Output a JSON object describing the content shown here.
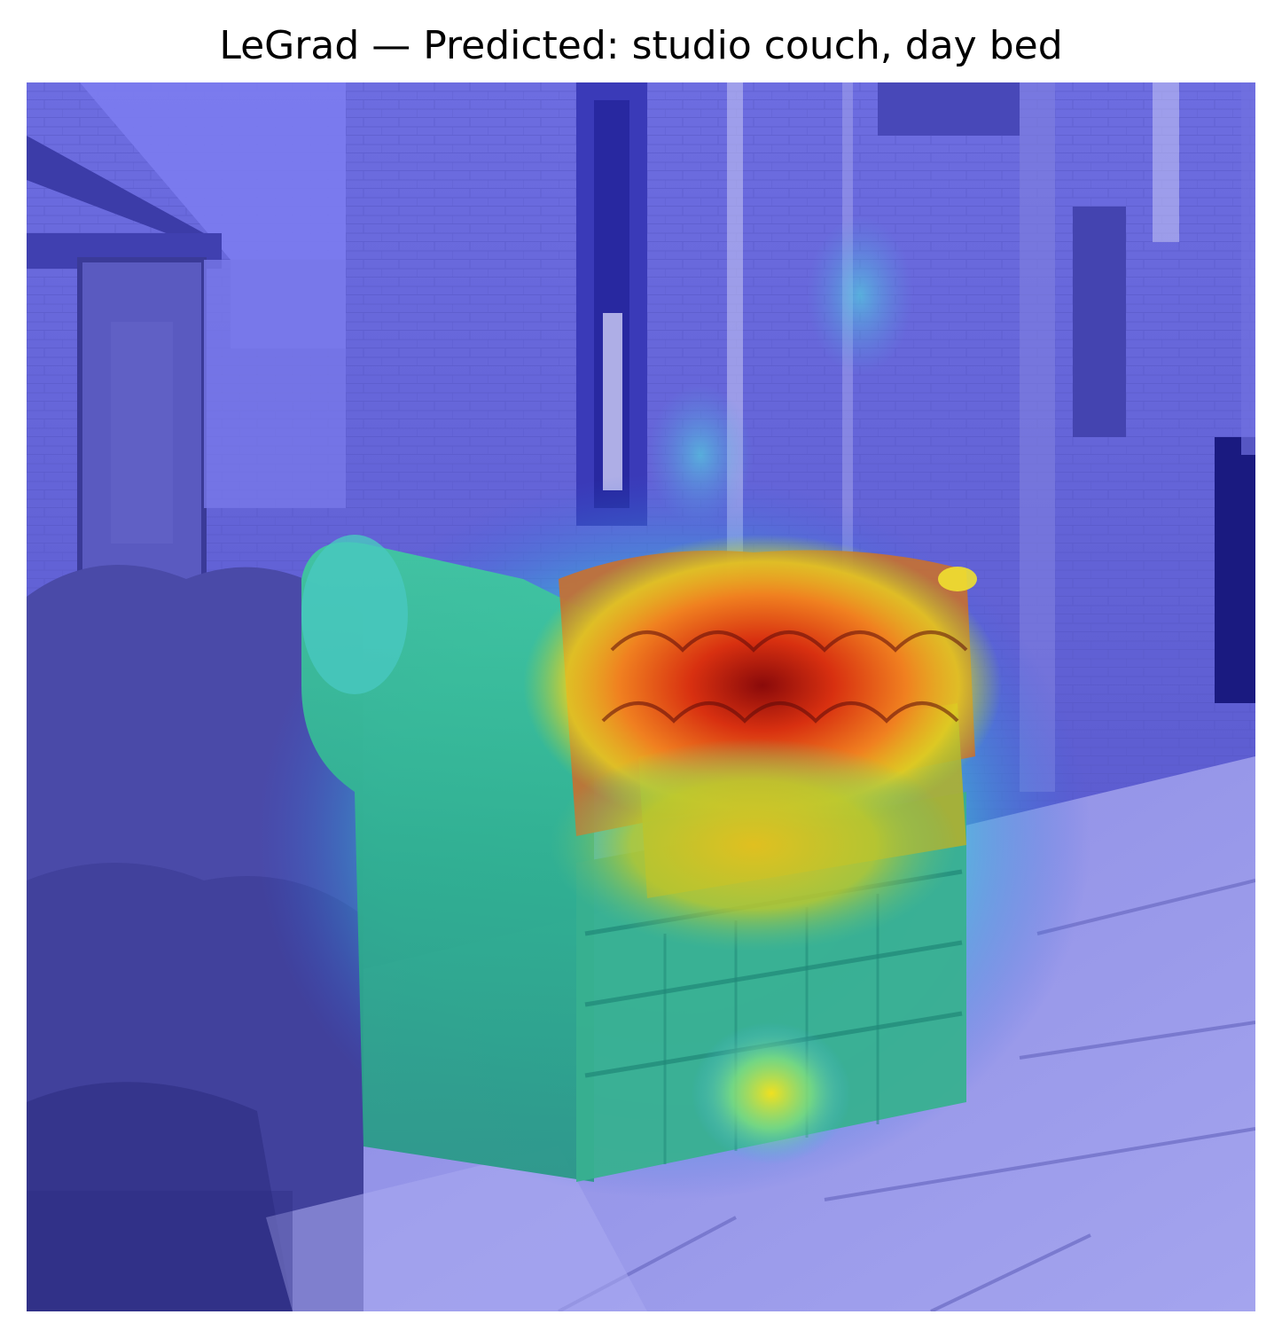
{
  "figure": {
    "title": "LeGrad — Predicted: studio couch, day bed"
  },
  "overlay": {
    "colormap": "jet",
    "colors": {
      "low": "#2a2ae0",
      "mid_low": "#1fb0c8",
      "mid": "#8fd040",
      "mid_high": "#f0d020",
      "high": "#e03010",
      "peak": "#8a0a0a"
    }
  },
  "scene": {
    "subject": "couch-icon",
    "colors": {
      "wall": "#6a6ad8",
      "pavement": "#9a9ae8",
      "hedge": "#4a4aa8",
      "downpipe": "#c8c8f4"
    }
  }
}
